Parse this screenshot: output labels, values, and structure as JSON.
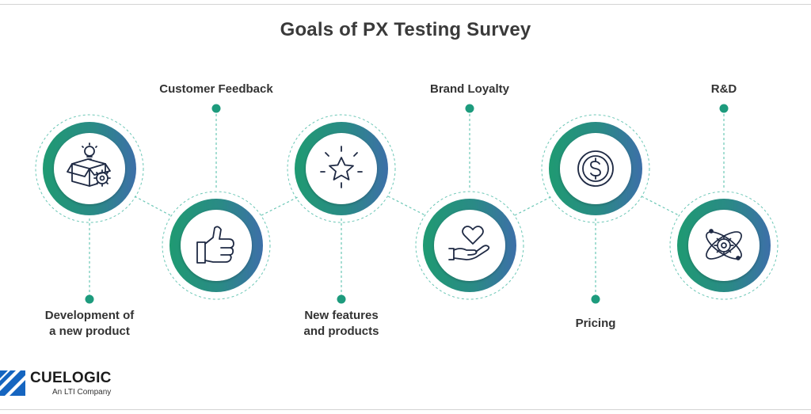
{
  "title": "Goals of PX Testing Survey",
  "goals": [
    {
      "label_lines": [
        "Development of",
        "a new product"
      ],
      "icon": "box-lightbulb-gear-icon"
    },
    {
      "label_lines": [
        "Customer Feedback"
      ],
      "icon": "thumbs-up-icon"
    },
    {
      "label_lines": [
        "New features",
        "and products"
      ],
      "icon": "sparkling-star-icon"
    },
    {
      "label_lines": [
        "Brand Loyalty"
      ],
      "icon": "heart-in-hand-icon"
    },
    {
      "label_lines": [
        "Pricing"
      ],
      "icon": "dollar-coin-icon"
    },
    {
      "label_lines": [
        "R&D"
      ],
      "icon": "atom-gear-icon"
    }
  ],
  "colors": {
    "gradient_start": "#1f9a72",
    "gradient_end": "#3d6fa8",
    "accent_dot": "#1d9b7d",
    "dashed_line": "#6cc7b6",
    "icon_stroke": "#1f2a44"
  },
  "brand": {
    "name": "CUELOGIC",
    "tagline": "An LTI Company",
    "logo_color": "#1565c0"
  }
}
